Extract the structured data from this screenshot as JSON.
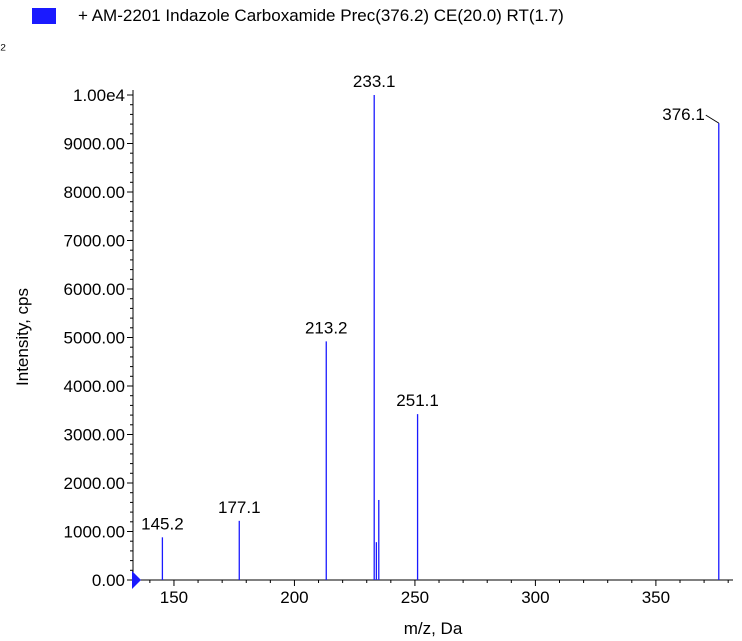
{
  "legend": {
    "label": "+ AM-2201 Indazole Carboxamide Prec(376.2) CE(20.0) RT(1.7)",
    "color": "#1a1aff"
  },
  "chart_data": {
    "type": "bar",
    "xlabel": "m/z, Da",
    "ylabel": "Intensity, cps",
    "xlim": [
      133,
      382
    ],
    "ylim": [
      0,
      10000
    ],
    "x_ticks": [
      150,
      200,
      250,
      300,
      350
    ],
    "y_ticks": [
      {
        "value": 0,
        "label": "0.00"
      },
      {
        "value": 1000,
        "label": "1000.00"
      },
      {
        "value": 2000,
        "label": "2000.00"
      },
      {
        "value": 3000,
        "label": "3000.00"
      },
      {
        "value": 4000,
        "label": "4000.00"
      },
      {
        "value": 5000,
        "label": "5000.00"
      },
      {
        "value": 6000,
        "label": "6000.00"
      },
      {
        "value": 7000,
        "label": "7000.00"
      },
      {
        "value": 8000,
        "label": "8000.00"
      },
      {
        "value": 9000,
        "label": "9000.00"
      },
      {
        "value": 10000,
        "label": "1.00e4"
      }
    ],
    "peaks": [
      {
        "x": 145.2,
        "y": 880,
        "label": "145.2"
      },
      {
        "x": 177.1,
        "y": 1220,
        "label": "177.1"
      },
      {
        "x": 213.2,
        "y": 4920,
        "label": "213.2"
      },
      {
        "x": 233.1,
        "y": 10000,
        "label": "233.1"
      },
      {
        "x": 234.0,
        "y": 780,
        "label": ""
      },
      {
        "x": 235.0,
        "y": 1650,
        "label": ""
      },
      {
        "x": 251.1,
        "y": 3420,
        "label": "251.1"
      },
      {
        "x": 376.1,
        "y": 9420,
        "label": "376.1"
      }
    ],
    "series_color": "#1a1aff"
  }
}
